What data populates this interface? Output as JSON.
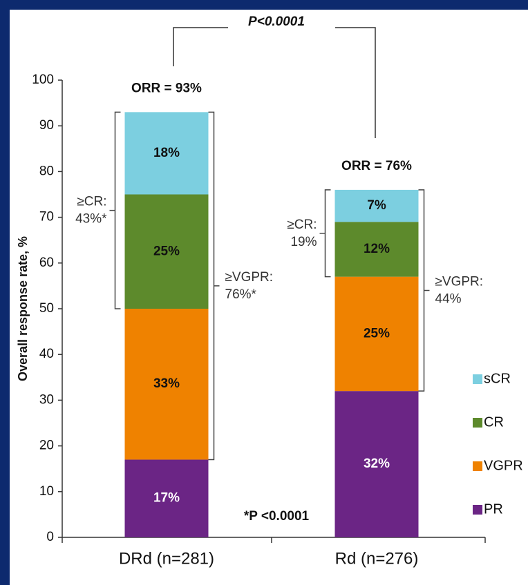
{
  "chart_data": {
    "type": "stacked_bar",
    "y_label": "Overall response rate, %",
    "categories": [
      "DRd (n=281)",
      "Rd (n=276)"
    ],
    "series": [
      {
        "name": "PR",
        "color": "#6b2585",
        "values": [
          17,
          32
        ],
        "value_labels": [
          "17%",
          "32%"
        ]
      },
      {
        "name": "VGPR",
        "color": "#ef8200",
        "values": [
          33,
          25
        ],
        "value_labels": [
          "33%",
          "25%"
        ]
      },
      {
        "name": "CR",
        "color": "#5d8a2c",
        "values": [
          25,
          12
        ],
        "value_labels": [
          "25%",
          "12%"
        ]
      },
      {
        "name": "sCR",
        "color": "#7ccfe0",
        "values": [
          18,
          7
        ],
        "value_labels": [
          "18%",
          "7%"
        ]
      }
    ],
    "ylim": [
      0,
      100
    ],
    "yticks": [
      0,
      10,
      20,
      30,
      40,
      50,
      60,
      70,
      80,
      90,
      100
    ],
    "orr_labels": [
      "ORR = 93%",
      "ORR = 76%"
    ],
    "p_value": "P<0.0001",
    "footnote": "*P <0.0001",
    "brackets": [
      {
        "lines": [
          "≥CR:",
          "43%*"
        ]
      },
      {
        "lines": [
          "≥VGPR:",
          "76%*"
        ]
      },
      {
        "lines": [
          "≥CR:",
          "19%"
        ]
      },
      {
        "lines": [
          "≥VGPR:",
          "44%"
        ]
      }
    ]
  }
}
